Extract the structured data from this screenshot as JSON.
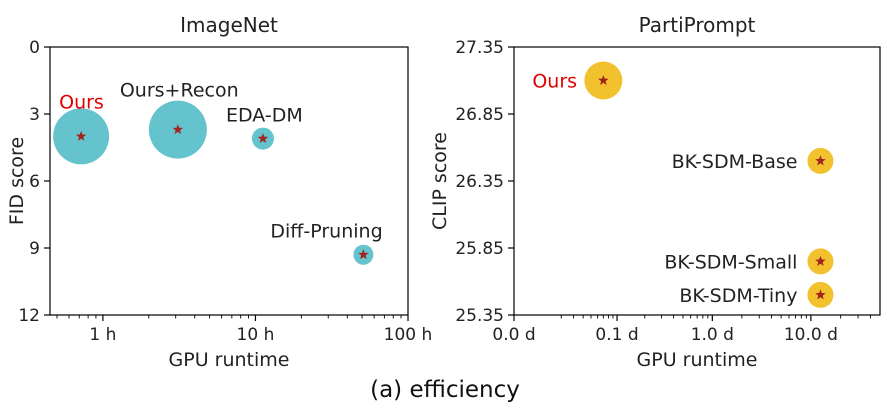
{
  "caption": "(a) efficiency",
  "chart_data": [
    {
      "type": "scatter",
      "title": "ImageNet",
      "xlabel": "GPU runtime",
      "ylabel": "FID score",
      "x_scale": "log",
      "xlim": [
        0.45,
        100
      ],
      "ylim": [
        12,
        0
      ],
      "y_inverted": true,
      "x_ticks": [
        1,
        10,
        100
      ],
      "x_tick_labels": [
        "1 h",
        "10 h",
        "100 h"
      ],
      "y_ticks": [
        0,
        3,
        6,
        9,
        12
      ],
      "y_tick_labels": [
        "0",
        "3",
        "6",
        "9",
        "12"
      ],
      "grid": false,
      "marker_color": "#64c3cd",
      "star_color": "#a3231d",
      "points": [
        {
          "label": "Ours",
          "x": 0.72,
          "y": 4.0,
          "size": 28,
          "label_color": "#e00000"
        },
        {
          "label": "Ours+Recon",
          "x": 3.1,
          "y": 3.7,
          "size": 29,
          "label_color": "#222222"
        },
        {
          "label": "EDA-DM",
          "x": 11.2,
          "y": 4.1,
          "size": 11,
          "label_color": "#222222"
        },
        {
          "label": "Diff-Pruning",
          "x": 51,
          "y": 9.3,
          "size": 10,
          "label_color": "#222222"
        }
      ]
    },
    {
      "type": "scatter",
      "title": "PartiPrompt",
      "xlabel": "GPU runtime",
      "ylabel": "CLIP score",
      "x_scale": "symlog",
      "xlim": [
        0,
        50
      ],
      "ylim": [
        25.35,
        27.35
      ],
      "x_ticks": [
        0,
        0.1,
        1,
        10
      ],
      "x_tick_labels": [
        "0.0 d",
        "0.1 d",
        "1.0 d",
        "10.0 d"
      ],
      "y_ticks": [
        25.35,
        25.85,
        26.35,
        26.85,
        27.35
      ],
      "y_tick_labels": [
        "25.35",
        "25.85",
        "26.35",
        "26.85",
        "27.35"
      ],
      "grid": false,
      "marker_color": "#f2c12e",
      "star_color": "#a3231d",
      "points": [
        {
          "label": "Ours",
          "x": 0.07,
          "y": 27.1,
          "size": 19,
          "label_color": "#e00000"
        },
        {
          "label": "BK-SDM-Base",
          "x": 12.5,
          "y": 26.5,
          "size": 13,
          "label_color": "#222222"
        },
        {
          "label": "BK-SDM-Small",
          "x": 12.5,
          "y": 25.75,
          "size": 13,
          "label_color": "#222222"
        },
        {
          "label": "BK-SDM-Tiny",
          "x": 12.5,
          "y": 25.5,
          "size": 13,
          "label_color": "#222222"
        }
      ]
    }
  ]
}
